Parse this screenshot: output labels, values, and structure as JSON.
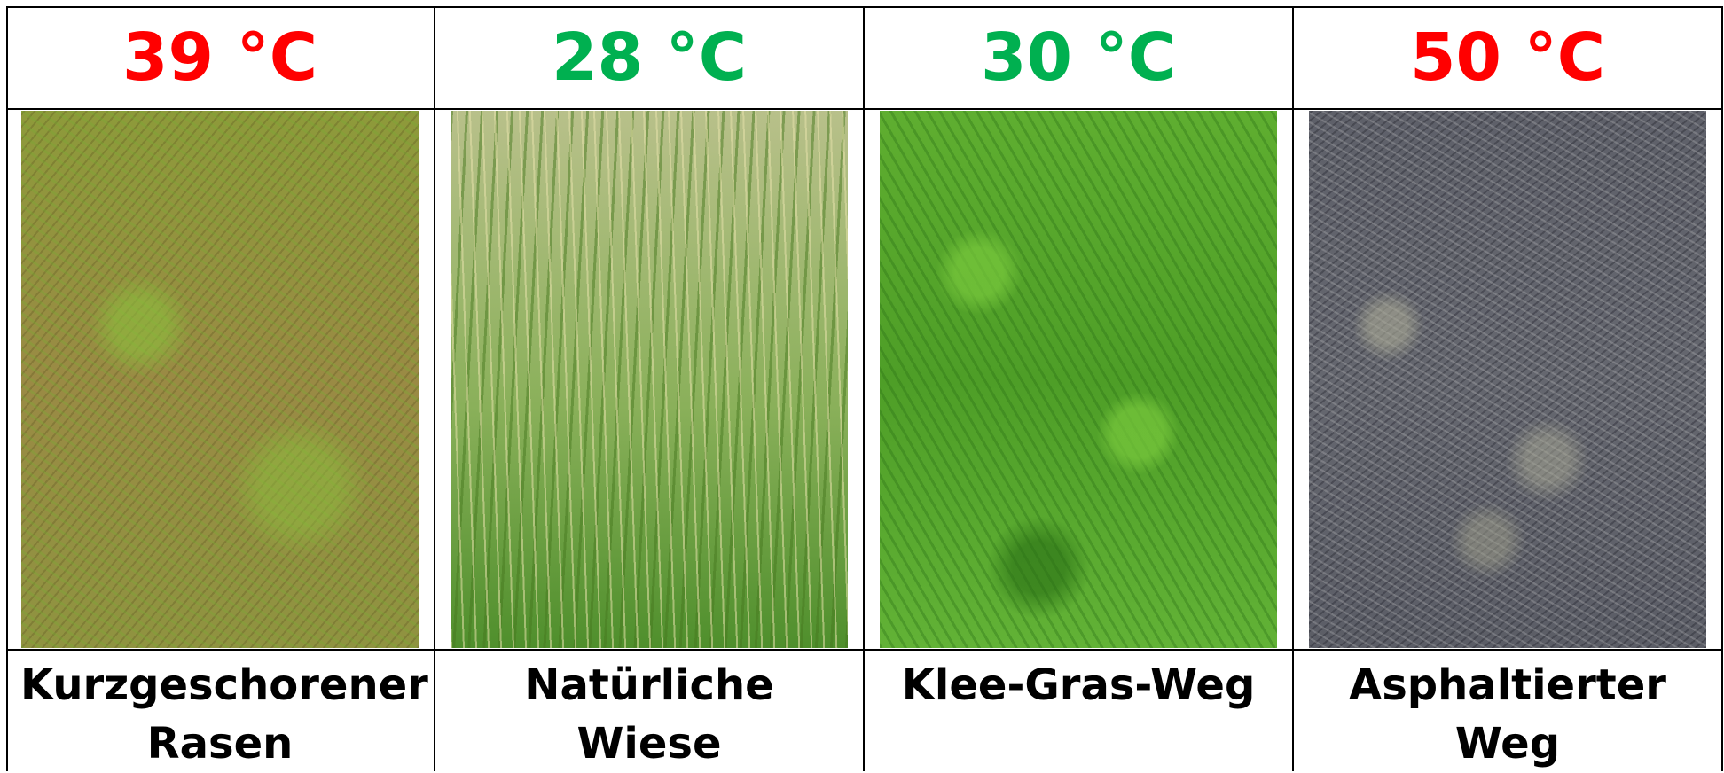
{
  "columns": [
    {
      "temperature": "39 °C",
      "temperature_color": "#ff0000",
      "label": "Kurzgeschorener Rasen"
    },
    {
      "temperature": "28 °C",
      "temperature_color": "#00b050",
      "label": "Natürliche Wiese"
    },
    {
      "temperature": "30 °C",
      "temperature_color": "#00b050",
      "label": "Klee-Gras-Weg"
    },
    {
      "temperature": "50 °C",
      "temperature_color": "#ff0000",
      "label": "Asphaltierter Weg"
    }
  ]
}
